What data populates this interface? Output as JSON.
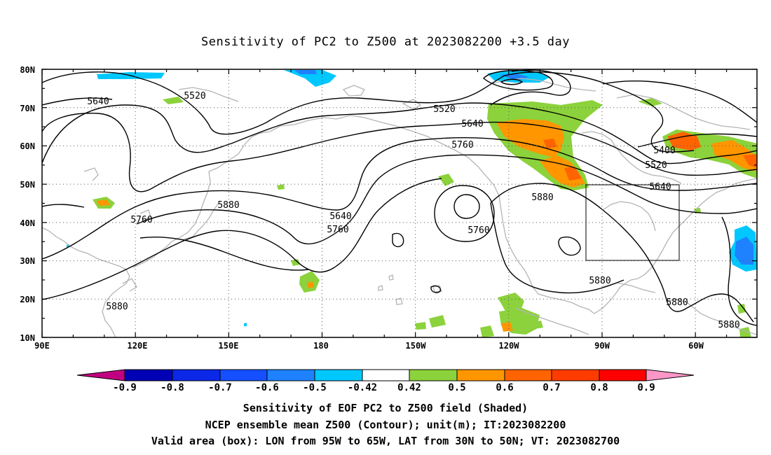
{
  "title": "Sensitivity of PC2 to Z500 at 2023082200 +3.5 day",
  "lat_labels": [
    "80N",
    "70N",
    "60N",
    "50N",
    "40N",
    "30N",
    "20N",
    "10N"
  ],
  "lon_labels": [
    "90E",
    "120E",
    "150E",
    "180",
    "150W",
    "120W",
    "90W",
    "60W"
  ],
  "contour_labels": [
    "5640",
    "5520",
    "5520",
    "5640",
    "5760",
    "5400",
    "5520",
    "5640",
    "5880",
    "5760",
    "5880",
    "5640",
    "5760",
    "5760",
    "5880",
    "5880",
    "5880",
    "5880"
  ],
  "colorbar": {
    "labels": [
      "-0.9",
      "-0.8",
      "-0.7",
      "-0.6",
      "-0.5",
      "-0.42",
      "0.42",
      "0.5",
      "0.6",
      "0.7",
      "0.8",
      "0.9"
    ],
    "colors": [
      "#c00080",
      "#0000b4",
      "#0a28e6",
      "#1450ff",
      "#1e82ff",
      "#00c8ff",
      "#ffffff",
      "#8cd23c",
      "#ff9600",
      "#ff6400",
      "#ff3c00",
      "#ff0000",
      "#ff96c8"
    ]
  },
  "valid_box": {
    "lon_min": -95,
    "lon_max": -65,
    "lat_min": 30,
    "lat_max": 50
  },
  "captions": {
    "line1": "Sensitivity of EOF PC2 to Z500 field (Shaded)",
    "line2": "NCEP ensemble mean Z500 (Contour); unit(m); IT:2023082200",
    "line3": "Valid area (box): LON from 95W to 65W, LAT from 30N to 50N; VT: 2023082700"
  }
}
